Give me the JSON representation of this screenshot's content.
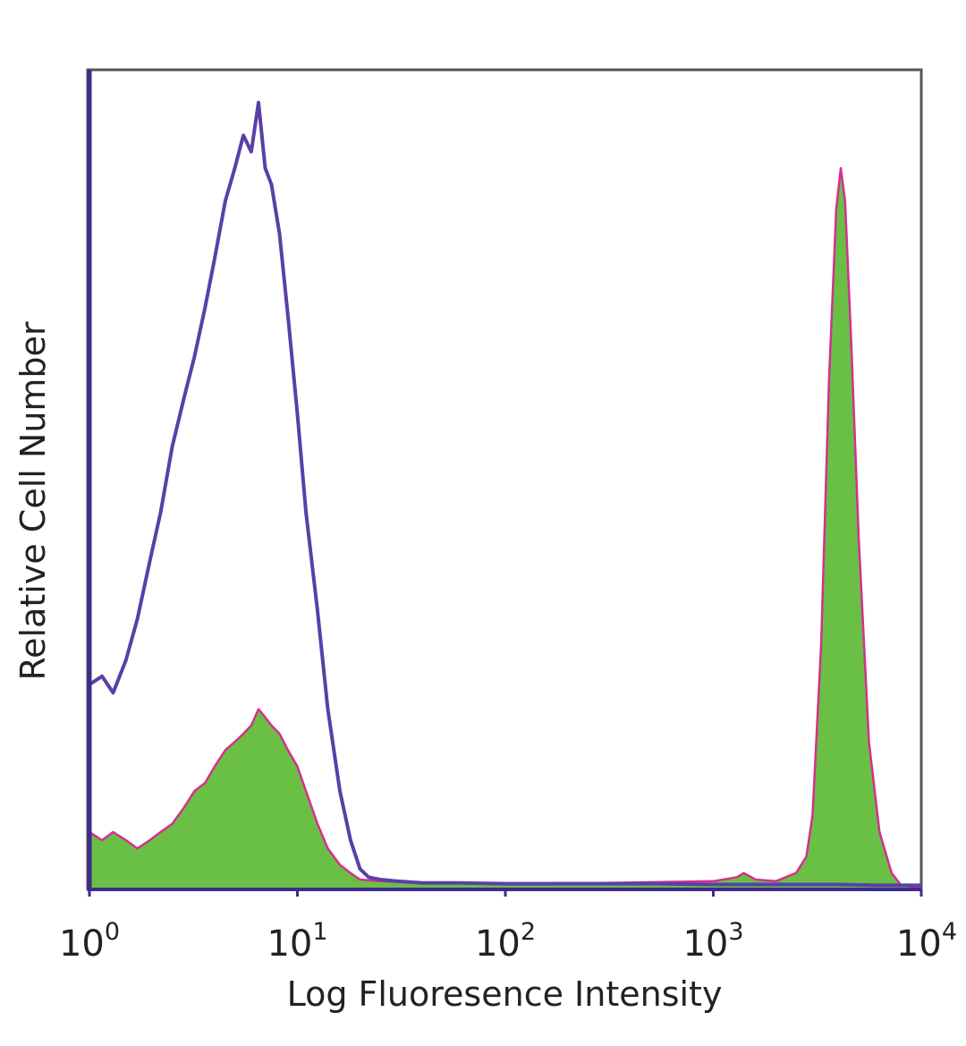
{
  "chart_data": {
    "type": "area",
    "xlabel": "Log Fluoresence Intensity",
    "ylabel": "Relative Cell Number",
    "x_scale": "log",
    "xlim": [
      1,
      10000
    ],
    "ylim": [
      0,
      1
    ],
    "grid": false,
    "x_ticks": [
      {
        "value": 1,
        "base": "10",
        "exp": "0"
      },
      {
        "value": 10,
        "base": "10",
        "exp": "1"
      },
      {
        "value": 100,
        "base": "10",
        "exp": "2"
      },
      {
        "value": 1000,
        "base": "10",
        "exp": "3"
      },
      {
        "value": 10000,
        "base": "10",
        "exp": "4"
      }
    ],
    "series": [
      {
        "style": "outline",
        "color": "#5a3fa8",
        "x": [
          1.0,
          1.15,
          1.3,
          1.5,
          1.7,
          1.95,
          2.2,
          2.5,
          2.85,
          3.2,
          3.6,
          4.0,
          4.5,
          5.0,
          5.5,
          6.0,
          6.5,
          7.0,
          7.5,
          8.2,
          9.0,
          10.0,
          11.0,
          12.5,
          14.0,
          16.0,
          18.0,
          20.0,
          22.0,
          25.0,
          30.0,
          40.0,
          60.0,
          100.0,
          200.0,
          500.0,
          1000.0,
          2000.0,
          3000.0,
          4000.0,
          6000.0,
          10000.0
        ],
        "y": [
          0.25,
          0.26,
          0.24,
          0.28,
          0.33,
          0.4,
          0.46,
          0.54,
          0.6,
          0.65,
          0.71,
          0.77,
          0.84,
          0.88,
          0.92,
          0.9,
          0.96,
          0.88,
          0.86,
          0.8,
          0.7,
          0.58,
          0.46,
          0.34,
          0.22,
          0.12,
          0.06,
          0.025,
          0.015,
          0.012,
          0.01,
          0.008,
          0.008,
          0.007,
          0.007,
          0.007,
          0.006,
          0.006,
          0.006,
          0.006,
          0.005,
          0.005
        ]
      },
      {
        "style": "filled",
        "color": "#6abf45",
        "edge_color": "#d4308f",
        "x": [
          1.0,
          1.15,
          1.3,
          1.5,
          1.7,
          1.95,
          2.2,
          2.5,
          2.85,
          3.2,
          3.6,
          4.0,
          4.5,
          5.0,
          5.5,
          6.0,
          6.5,
          7.0,
          7.5,
          8.2,
          9.0,
          10.0,
          11.0,
          12.5,
          14.0,
          16.0,
          18.0,
          20.0,
          25.0,
          40.0,
          100.0,
          300.0,
          1000.0,
          1300.0,
          1400.0,
          1600.0,
          2000.0,
          2500.0,
          2800.0,
          3000.0,
          3300.0,
          3600.0,
          3900.0,
          4100.0,
          4300.0,
          4600.0,
          5000.0,
          5600.0,
          6300.0,
          7200.0,
          8000.0,
          10000.0
        ],
        "y": [
          0.07,
          0.06,
          0.07,
          0.06,
          0.05,
          0.06,
          0.07,
          0.08,
          0.1,
          0.12,
          0.13,
          0.15,
          0.17,
          0.18,
          0.19,
          0.2,
          0.22,
          0.21,
          0.2,
          0.19,
          0.17,
          0.15,
          0.12,
          0.08,
          0.05,
          0.03,
          0.02,
          0.012,
          0.01,
          0.008,
          0.007,
          0.008,
          0.01,
          0.015,
          0.02,
          0.012,
          0.01,
          0.02,
          0.04,
          0.09,
          0.3,
          0.62,
          0.83,
          0.88,
          0.84,
          0.67,
          0.43,
          0.18,
          0.07,
          0.02,
          0.005,
          0.002
        ]
      }
    ]
  }
}
